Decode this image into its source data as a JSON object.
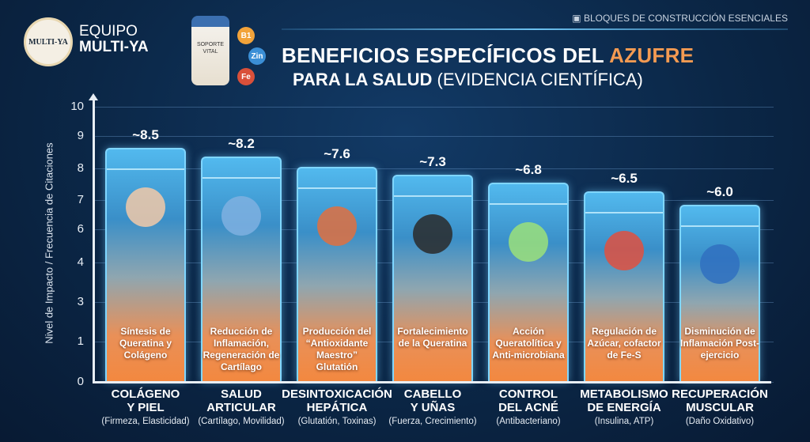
{
  "header": {
    "logo_text": "MULTI-YA",
    "brand_line1": "EQUIPO",
    "brand_line2": "MULTI-YA",
    "bottle_label": "SOPORTE VITAL",
    "vitamins": [
      "B1",
      "Zin",
      "Fe"
    ],
    "tagline": "BLOQUES DE CONSTRUCCIÓN ESENCIALES",
    "title_part1": "BENEFICIOS ESPECÍFICOS DEL ",
    "title_highlight": "AZUFRE",
    "subtitle_bold": "PARA LA SALUD",
    "subtitle_rest": " (EVIDENCIA CIENTÍFICA)"
  },
  "colors": {
    "background": "#0b2747",
    "accent": "#f39a52",
    "bar_top": "#52b9ee",
    "bar_bottom": "#f3883f"
  },
  "chart_data": {
    "type": "bar",
    "title": "BENEFICIOS ESPECÍFICOS DEL AZUFRE PARA LA SALUD (EVIDENCIA CIENTÍFICA)",
    "ylabel": "Nivel de Impacto / Frecuencia de Citaciones",
    "yticks": [
      "10",
      "9",
      "8",
      "7",
      "6",
      "4",
      "3",
      "1",
      "0"
    ],
    "ylim": [
      0,
      10
    ],
    "grid": true,
    "categories": [
      {
        "name": "COLÁGENO Y PIEL",
        "line1": "COLÁGENO",
        "line2": "Y PIEL",
        "sub": "(Firmeza, Elasticidad)",
        "desc": "Síntesis de Queratina y Colágeno",
        "label": "~8.5",
        "value": 8.5
      },
      {
        "name": "SALUD ARTICULAR",
        "line1": "SALUD",
        "line2": "ARTICULAR",
        "sub": "(Cartílago, Movilidad)",
        "desc": "Reducción de Inflamación, Regeneración de Cartílago",
        "label": "~8.2",
        "value": 8.2
      },
      {
        "name": "DESINTOXICACIÓN HEPÁTICA",
        "line1": "DESINTOXICACIÓN",
        "line2": "HEPÁTICA",
        "sub": "(Glutatión, Toxinas)",
        "desc": "Producción del “Antioxidante Maestro” Glutatión",
        "label": "~7.6",
        "value": 7.6
      },
      {
        "name": "CABELLO Y UÑAS",
        "line1": "CABELLO",
        "line2": "Y UÑAS",
        "sub": "(Fuerza, Crecimiento)",
        "desc": "Fortalecimiento de la Queratina",
        "label": "~7.3",
        "value": 7.3
      },
      {
        "name": "CONTROL DEL ACNÉ",
        "line1": "CONTROL",
        "line2": "DEL ACNÉ",
        "sub": "(Antibacteriano)",
        "desc": "Acción Queratolítica y Anti-microbiana",
        "label": "~6.8",
        "value": 6.8
      },
      {
        "name": "METABOLISMO DE ENERGÍA",
        "line1": "METABOLISMO",
        "line2": "DE ENERGÍA",
        "sub": "(Insulina, ATP)",
        "desc": "Regulación de Azúcar, cofactor de Fe-S",
        "label": "~6.5",
        "value": 6.5
      },
      {
        "name": "RECUPERACIÓN MUSCULAR",
        "line1": "RECUPERACIÓN",
        "line2": "MUSCULAR",
        "sub": "(Daño Oxidativo)",
        "desc": "Disminución de Inflamación Post-ejercicio",
        "label": "~6.0",
        "value": 6.0
      }
    ]
  }
}
